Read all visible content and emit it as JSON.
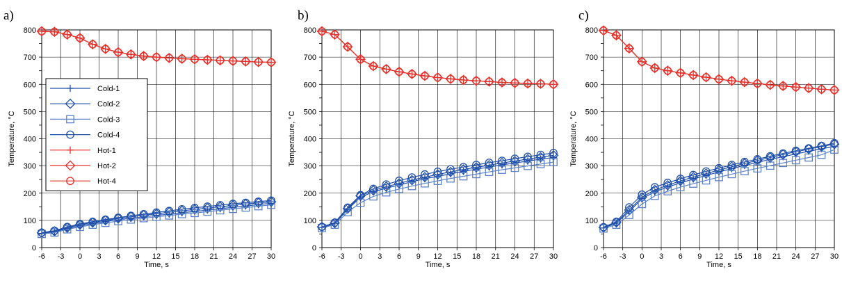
{
  "colors": {
    "cold": "#1f4fa8",
    "cold_light": "#5b82c8",
    "hot": "#e8302a",
    "grid": "#000000"
  },
  "chart_data": [
    {
      "panel_label": "a)",
      "type": "line",
      "xlabel": "Time, s",
      "ylabel": "Temperature, °C",
      "xlim": [
        -6,
        30
      ],
      "ylim": [
        0,
        800
      ],
      "xticks": [
        -6,
        -3,
        0,
        3,
        6,
        9,
        12,
        15,
        18,
        21,
        24,
        27,
        30
      ],
      "yticks": [
        0,
        100,
        200,
        300,
        400,
        500,
        600,
        700,
        800
      ],
      "grid": true,
      "legend_position": "left-middle",
      "x": [
        -6,
        -4,
        -2,
        0,
        2,
        4,
        6,
        8,
        10,
        12,
        14,
        16,
        18,
        20,
        22,
        24,
        26,
        28,
        30
      ],
      "series": [
        {
          "name": "Cold-1",
          "marker": "plus",
          "group": "cold",
          "values": [
            52,
            58,
            70,
            80,
            88,
            96,
            102,
            108,
            113,
            118,
            123,
            128,
            133,
            138,
            143,
            148,
            153,
            158,
            163
          ]
        },
        {
          "name": "Cold-2",
          "marker": "diamond",
          "group": "cold",
          "values": [
            54,
            60,
            73,
            84,
            92,
            100,
            107,
            113,
            119,
            124,
            130,
            135,
            140,
            145,
            150,
            155,
            160,
            164,
            168
          ]
        },
        {
          "name": "Cold-3",
          "marker": "square",
          "group": "cold",
          "values": [
            50,
            55,
            67,
            76,
            84,
            91,
            97,
            103,
            108,
            113,
            118,
            123,
            127,
            132,
            137,
            142,
            147,
            152,
            157
          ]
        },
        {
          "name": "Cold-4",
          "marker": "circle",
          "group": "cold",
          "values": [
            55,
            62,
            76,
            87,
            95,
            103,
            110,
            117,
            123,
            129,
            135,
            141,
            146,
            151,
            156,
            161,
            165,
            169,
            173
          ]
        },
        {
          "name": "Hot-1",
          "marker": "plus",
          "group": "hot",
          "values": [
            795,
            793,
            783,
            770,
            747,
            730,
            718,
            710,
            704,
            700,
            697,
            694,
            692,
            690,
            688,
            686,
            684,
            682,
            681
          ]
        },
        {
          "name": "Hot-2",
          "marker": "diamond",
          "group": "hot",
          "values": [
            795,
            793,
            783,
            770,
            747,
            730,
            718,
            710,
            704,
            700,
            697,
            694,
            692,
            690,
            688,
            686,
            684,
            682,
            681
          ]
        },
        {
          "name": "Hot-4",
          "marker": "circle",
          "group": "hot",
          "values": [
            795,
            793,
            783,
            770,
            747,
            730,
            718,
            710,
            704,
            700,
            697,
            694,
            692,
            690,
            688,
            686,
            684,
            682,
            681
          ]
        }
      ]
    },
    {
      "panel_label": "b)",
      "type": "line",
      "xlabel": "Time, s",
      "ylabel": "Temperature, °C",
      "xlim": [
        -6,
        30
      ],
      "ylim": [
        0,
        800
      ],
      "xticks": [
        -6,
        -3,
        0,
        3,
        6,
        9,
        12,
        15,
        18,
        21,
        24,
        27,
        30
      ],
      "yticks": [
        0,
        100,
        200,
        300,
        400,
        500,
        600,
        700,
        800
      ],
      "grid": true,
      "x": [
        -6,
        -4,
        -2,
        0,
        2,
        4,
        6,
        8,
        10,
        12,
        14,
        16,
        18,
        20,
        22,
        24,
        26,
        28,
        30
      ],
      "series": [
        {
          "name": "Cold-1",
          "marker": "plus",
          "group": "cold",
          "values": [
            74,
            88,
            140,
            185,
            205,
            218,
            230,
            242,
            253,
            262,
            271,
            280,
            288,
            296,
            304,
            311,
            318,
            325,
            331
          ]
        },
        {
          "name": "Cold-2",
          "marker": "diamond",
          "group": "cold",
          "values": [
            76,
            90,
            143,
            190,
            210,
            224,
            236,
            248,
            259,
            269,
            278,
            287,
            295,
            303,
            311,
            318,
            325,
            332,
            339
          ]
        },
        {
          "name": "Cold-3",
          "marker": "square",
          "group": "cold",
          "values": [
            72,
            84,
            130,
            165,
            188,
            203,
            215,
            226,
            236,
            245,
            254,
            262,
            270,
            278,
            286,
            293,
            300,
            307,
            314
          ]
        },
        {
          "name": "Cold-4",
          "marker": "circle",
          "group": "cold",
          "values": [
            76,
            92,
            147,
            193,
            216,
            232,
            246,
            258,
            269,
            279,
            288,
            296,
            304,
            312,
            319,
            327,
            334,
            341,
            348
          ]
        },
        {
          "name": "Hot-1",
          "marker": "plus",
          "group": "hot",
          "values": [
            795,
            783,
            738,
            692,
            667,
            656,
            646,
            638,
            631,
            625,
            620,
            616,
            613,
            610,
            607,
            605,
            603,
            602,
            600
          ]
        },
        {
          "name": "Hot-2",
          "marker": "diamond",
          "group": "hot",
          "values": [
            795,
            783,
            738,
            692,
            667,
            656,
            646,
            638,
            631,
            625,
            620,
            616,
            613,
            610,
            607,
            605,
            603,
            602,
            600
          ]
        },
        {
          "name": "Hot-4",
          "marker": "circle",
          "group": "hot",
          "values": [
            795,
            783,
            738,
            692,
            667,
            656,
            646,
            638,
            631,
            625,
            620,
            616,
            613,
            610,
            607,
            605,
            603,
            602,
            600
          ]
        }
      ]
    },
    {
      "panel_label": "c)",
      "type": "line",
      "xlabel": "Time, s",
      "ylabel": "Temperature, °C",
      "xlim": [
        -6,
        30
      ],
      "ylim": [
        0,
        800
      ],
      "xticks": [
        -6,
        -3,
        0,
        3,
        6,
        9,
        12,
        15,
        18,
        21,
        24,
        27,
        30
      ],
      "yticks": [
        0,
        100,
        200,
        300,
        400,
        500,
        600,
        700,
        800
      ],
      "grid": true,
      "x": [
        -6,
        -4,
        -2,
        0,
        2,
        4,
        6,
        8,
        10,
        12,
        14,
        16,
        18,
        20,
        22,
        24,
        26,
        28,
        30
      ],
      "series": [
        {
          "name": "Cold-1",
          "marker": "plus",
          "group": "cold",
          "values": [
            72,
            90,
            132,
            180,
            205,
            222,
            238,
            252,
            265,
            278,
            290,
            302,
            313,
            324,
            334,
            344,
            354,
            363,
            372
          ]
        },
        {
          "name": "Cold-2",
          "marker": "diamond",
          "group": "cold",
          "values": [
            74,
            92,
            138,
            185,
            212,
            229,
            245,
            259,
            272,
            285,
            297,
            309,
            320,
            331,
            342,
            352,
            362,
            371,
            380
          ]
        },
        {
          "name": "Cold-3",
          "marker": "square",
          "group": "cold",
          "values": [
            70,
            84,
            120,
            160,
            190,
            207,
            222,
            235,
            247,
            259,
            270,
            281,
            291,
            301,
            311,
            321,
            331,
            341,
            360
          ]
        },
        {
          "name": "Cold-4",
          "marker": "circle",
          "group": "cold",
          "values": [
            75,
            95,
            148,
            195,
            222,
            238,
            253,
            267,
            280,
            292,
            304,
            315,
            325,
            336,
            346,
            356,
            365,
            374,
            384
          ]
        },
        {
          "name": "Hot-1",
          "marker": "plus",
          "group": "hot",
          "values": [
            798,
            780,
            732,
            683,
            660,
            650,
            642,
            634,
            626,
            619,
            613,
            608,
            603,
            598,
            594,
            590,
            586,
            582,
            579
          ]
        },
        {
          "name": "Hot-2",
          "marker": "diamond",
          "group": "hot",
          "values": [
            798,
            780,
            732,
            683,
            660,
            650,
            642,
            634,
            626,
            619,
            613,
            608,
            603,
            598,
            594,
            590,
            586,
            582,
            579
          ]
        },
        {
          "name": "Hot-4",
          "marker": "circle",
          "group": "hot",
          "values": [
            798,
            780,
            732,
            683,
            660,
            650,
            642,
            634,
            626,
            619,
            613,
            608,
            603,
            598,
            594,
            590,
            586,
            582,
            579
          ]
        }
      ]
    }
  ]
}
